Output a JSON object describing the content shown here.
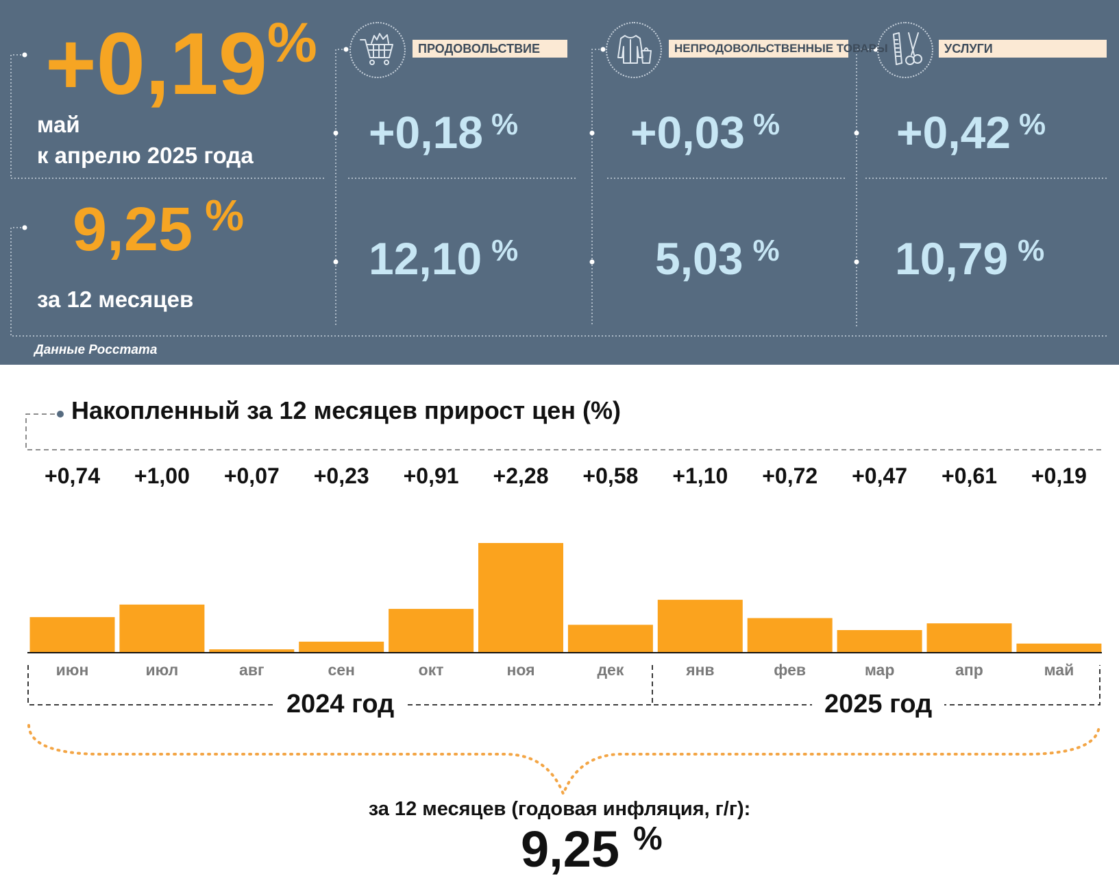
{
  "summary": {
    "monthly": {
      "value": "+0,19",
      "unit": "%",
      "line1": "май",
      "line2": "к апрелю 2025 года"
    },
    "annual": {
      "value": "9,25",
      "unit": "%",
      "label": "за 12 месяцев"
    },
    "source": "Данные Росстата"
  },
  "categories": [
    {
      "name": "ПРОДОВОЛЬСТВИЕ",
      "icon": "shopping-cart-icon",
      "monthly": "+0,18",
      "annual": "12,10",
      "unit": "%"
    },
    {
      "name": "НЕПРОДОВОЛЬСТВЕННЫЕ ТОВАРЫ",
      "icon": "clothes-icon",
      "monthly": "+0,03",
      "annual": "5,03",
      "unit": "%"
    },
    {
      "name": "УСЛУГИ",
      "icon": "scissors-comb-icon",
      "monthly": "+0,42",
      "annual": "10,79",
      "unit": "%"
    }
  ],
  "chart_data": {
    "type": "bar",
    "title": "Накопленный за 12 месяцев прирост цен (%)",
    "categories": [
      "июн",
      "июл",
      "авг",
      "сен",
      "окт",
      "ноя",
      "дек",
      "янв",
      "фев",
      "мар",
      "апр",
      "май"
    ],
    "values": [
      0.74,
      1.0,
      0.07,
      0.23,
      0.91,
      2.28,
      0.58,
      1.1,
      0.72,
      0.47,
      0.61,
      0.19
    ],
    "value_labels": [
      "+0,74",
      "+1,00",
      "+0,07",
      "+0,23",
      "+0,91",
      "+2,28",
      "+0,58",
      "+1,10",
      "+0,72",
      "+0,47",
      "+0,61",
      "+0,19"
    ],
    "years": [
      "2024 год",
      "2025 год"
    ],
    "bar_color": "#fba31e",
    "total_label": "за 12 месяцев (годовая инфляция, г/г):",
    "total_value": "9,25",
    "total_unit": "%"
  },
  "colors": {
    "panel": "#566b80",
    "orange": "#f6a523",
    "light_blue": "#c7e6f4",
    "label_bg": "#fbe9d4"
  }
}
